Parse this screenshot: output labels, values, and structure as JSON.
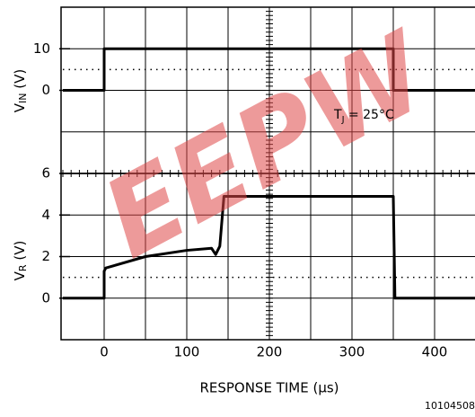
{
  "watermark": "EEPW",
  "part_number": "10104508",
  "annotation": {
    "main": "T",
    "sub": "J",
    "rest": " = 25°C"
  },
  "chart_data": [
    {
      "type": "line",
      "ylabel": {
        "main": "V",
        "sub": "IN",
        "rest": " (V)"
      },
      "x": [
        -50,
        0,
        0,
        350,
        350,
        450
      ],
      "series": [
        {
          "color": "#000000",
          "values": [
            0,
            0,
            10,
            10,
            0,
            0
          ]
        }
      ],
      "xlim": [
        -50,
        450
      ],
      "xgrid": [
        0,
        50,
        100,
        150,
        200,
        250,
        300,
        350,
        400
      ],
      "ylim": [
        -20,
        20
      ],
      "yticks": [
        0,
        10
      ],
      "ygrid": [
        -10,
        0,
        10
      ],
      "dotted": 5
    },
    {
      "type": "line",
      "ylabel": {
        "main": "V",
        "sub": "R",
        "rest": " (V)"
      },
      "xlabel": "RESPONSE TIME (μs)",
      "x": [
        -50,
        0,
        0,
        2,
        50,
        100,
        130,
        135,
        140,
        145,
        350,
        352,
        450
      ],
      "series": [
        {
          "color": "#000000",
          "values": [
            0,
            0,
            1.3,
            1.45,
            2,
            2.3,
            2.4,
            2.1,
            2.5,
            4.9,
            4.9,
            0,
            0
          ]
        }
      ],
      "xlim": [
        -50,
        450
      ],
      "xticks": [
        0,
        100,
        200,
        300,
        400
      ],
      "xgrid": [
        0,
        50,
        100,
        150,
        200,
        250,
        300,
        350,
        400
      ],
      "ylim": [
        -2,
        6
      ],
      "yticks": [
        0,
        2,
        4,
        6
      ],
      "ygrid": [
        0,
        2,
        4
      ],
      "dotted": 1
    }
  ]
}
